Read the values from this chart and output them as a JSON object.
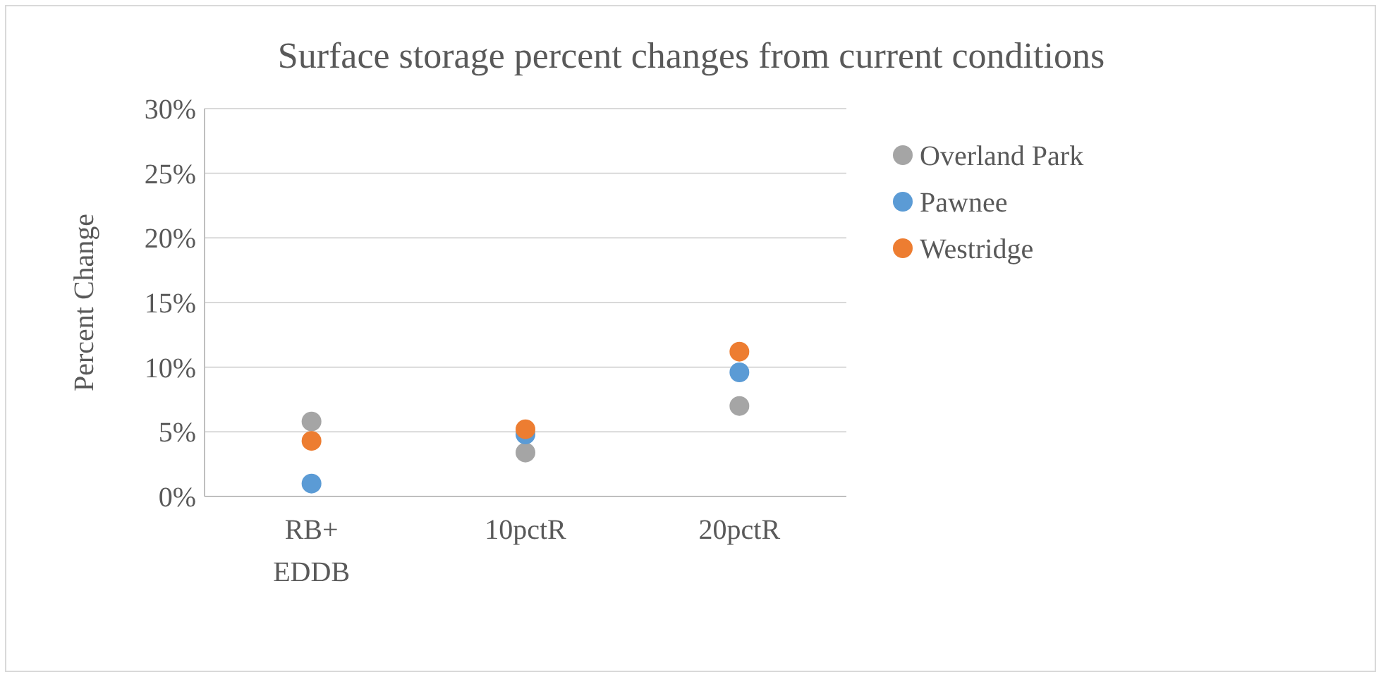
{
  "chart_data": {
    "type": "scatter",
    "title": "Surface storage percent changes from current conditions",
    "ylabel": "Percent Change",
    "categories": [
      "RB+ EDDB",
      "10pctR",
      "20pctR"
    ],
    "series": [
      {
        "name": "Overland Park",
        "color": "#a5a5a5",
        "values": [
          5.8,
          3.4,
          7.0
        ]
      },
      {
        "name": "Pawnee",
        "color": "#5b9bd5",
        "values": [
          1.0,
          4.8,
          9.6
        ]
      },
      {
        "name": "Westridge",
        "color": "#ed7d31",
        "values": [
          4.3,
          5.2,
          11.2
        ]
      }
    ],
    "ylim": [
      0,
      30
    ],
    "yticks": [
      {
        "value": 0,
        "label": "0%"
      },
      {
        "value": 5,
        "label": "5%"
      },
      {
        "value": 10,
        "label": "10%"
      },
      {
        "value": 15,
        "label": "15%"
      },
      {
        "value": 20,
        "label": "20%"
      },
      {
        "value": 25,
        "label": "25%"
      },
      {
        "value": 30,
        "label": "30%"
      }
    ],
    "grid": "y",
    "legend": "right",
    "marker": "circle"
  }
}
